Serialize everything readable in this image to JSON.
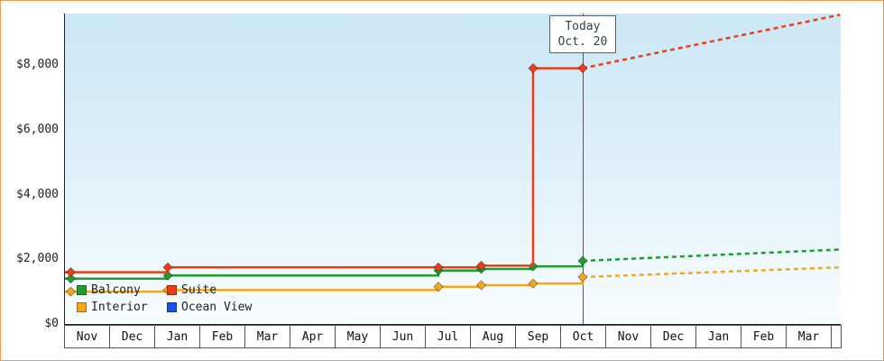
{
  "window": {
    "border_color": "#f09a52",
    "plot_background_top": "#cce7f6",
    "plot_background_bottom": "#f9fdff"
  },
  "legend": {
    "items": [
      {
        "label": "Balcony",
        "color": "#1f9e2d"
      },
      {
        "label": "Suite",
        "color": "#ee3d14"
      },
      {
        "label": "Interior",
        "color": "#f5a61d"
      },
      {
        "label": "Ocean View",
        "color": "#1a52e8"
      }
    ]
  },
  "chart_data": {
    "type": "line",
    "subtype": "stepped price-history with dashed forecast after today",
    "title": "",
    "x_axis": {
      "unit": "month",
      "months": [
        "Nov",
        "Dec",
        "Jan",
        "Feb",
        "Mar",
        "Apr",
        "May",
        "Jun",
        "Jul",
        "Aug",
        "Sep",
        "Oct",
        "Nov",
        "Dec",
        "Jan",
        "Feb",
        "Mar"
      ]
    },
    "y_axis": {
      "currency": "USD",
      "range": [
        0,
        9800
      ],
      "ticks": [
        {
          "label": "$0",
          "value": 0
        },
        {
          "label": "$2,000",
          "value": 2000
        },
        {
          "label": "$4,000",
          "value": 4000
        },
        {
          "label": "$6,000",
          "value": 6000
        },
        {
          "label": "$8,000",
          "value": 8000
        }
      ]
    },
    "today": {
      "label": "Today",
      "date": "Oct. 20",
      "x_months_from_start": 11.5
    },
    "series": [
      {
        "name": "Suite",
        "color": "#ee3d14",
        "points": [
          [
            0.15,
            1600
          ],
          [
            2.3,
            1750
          ],
          [
            8.3,
            1750
          ],
          [
            9.25,
            1800
          ],
          [
            10.4,
            7900
          ],
          [
            11.5,
            7900
          ]
        ],
        "forecast": [
          [
            11.5,
            7900
          ],
          [
            17.2,
            9550
          ]
        ]
      },
      {
        "name": "Balcony",
        "color": "#1f9e2d",
        "points": [
          [
            0.15,
            1400
          ],
          [
            2.3,
            1500
          ],
          [
            8.3,
            1650
          ],
          [
            9.25,
            1700
          ],
          [
            10.4,
            1780
          ],
          [
            11.5,
            1950
          ]
        ],
        "forecast": [
          [
            11.5,
            1950
          ],
          [
            17.2,
            2300
          ]
        ]
      },
      {
        "name": "Interior",
        "color": "#f5a61d",
        "points": [
          [
            0.15,
            1000
          ],
          [
            2.3,
            1050
          ],
          [
            8.3,
            1150
          ],
          [
            9.25,
            1200
          ],
          [
            10.4,
            1250
          ],
          [
            11.5,
            1450
          ]
        ],
        "forecast": [
          [
            11.5,
            1450
          ],
          [
            17.2,
            1750
          ]
        ]
      },
      {
        "name": "Ocean View",
        "color": "#1a52e8",
        "points": [],
        "forecast": []
      }
    ]
  }
}
